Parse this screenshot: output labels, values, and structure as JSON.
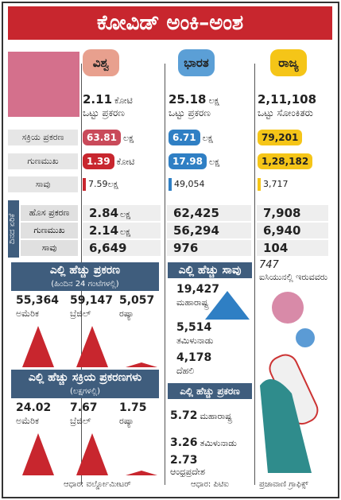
{
  "title": "ಕೋವಿಡ್ ಅಂಕಿ–ಅಂಶ",
  "columns": [
    {
      "header": "ವಿಶ್ವ",
      "total": "2.11",
      "total_unit": "ಕೋಟಿ",
      "total_label": "ಒಟ್ಟು ಪ್ರಕರಣ"
    },
    {
      "header": "ಭಾರತ",
      "total": "25.18",
      "total_unit": "ಲಕ್ಷ",
      "total_label": "ಒಟ್ಟು ಪ್ರಕರಣ"
    },
    {
      "header": "ರಾಜ್ಯ",
      "total": "2,11,108",
      "total_label": "ಒಟ್ಟು ಸೋಂಕಿತರು"
    }
  ],
  "cumulative": [
    {
      "label": "ಸಕ್ರಿಯ ಪ್ರಕರಣ",
      "cells": [
        {
          "value": "63.81",
          "unit": "ಲಕ್ಷ"
        },
        {
          "value": "6.71",
          "unit": "ಲಕ್ಷ"
        },
        {
          "value": "79,201"
        }
      ]
    },
    {
      "label": "ಗುಣಮುಖ",
      "cells": [
        {
          "value": "1.39",
          "unit": "ಕೋಟಿ"
        },
        {
          "value": "17.98",
          "unit": "ಲಕ್ಷ"
        },
        {
          "value": "1,28,182"
        }
      ]
    },
    {
      "label": "ಸಾವು",
      "cells": [
        {
          "value": "7.59",
          "unit": "ಲಕ್ಷ"
        },
        {
          "value": "49,054"
        },
        {
          "value": "3,717"
        }
      ]
    }
  ],
  "daily": {
    "label": "ದಿನದ ಏರಿಕೆ",
    "rows": [
      {
        "label": "ಹೊಸ ಪ್ರಕರಣ",
        "cells": [
          {
            "value": "2.84",
            "unit": "ಲಕ್ಷ"
          },
          {
            "value": "62,425"
          },
          {
            "value": "7,908"
          }
        ]
      },
      {
        "label": "ಗುಣಮುಖ",
        "cells": [
          {
            "value": "2.14",
            "unit": "ಲಕ್ಷ"
          },
          {
            "value": "56,294"
          },
          {
            "value": "6,940"
          }
        ]
      },
      {
        "label": "ಸಾವು",
        "cells": [
          {
            "value": "6,649"
          },
          {
            "value": "976"
          },
          {
            "value": "104"
          }
        ]
      }
    ]
  },
  "world_top_cases": {
    "title": "ಎಲ್ಲಿ ಹೆಚ್ಚು ಪ್ರಕರಣ",
    "subtitle": "(ಹಿಂದಿನ 24 ಗಂಟೆಗಳಲ್ಲಿ)",
    "items": [
      {
        "value": "55,364",
        "place": "ಅಮೆರಿಕ"
      },
      {
        "value": "59,147",
        "place": "ಬ್ರೆಜಿಲ್"
      },
      {
        "value": "5,057",
        "place": "ರಷ್ಯಾ"
      }
    ]
  },
  "world_top_active": {
    "title": "ಎಲ್ಲಿ ಹೆಚ್ಚು ಸಕ್ರಿಯ ಪ್ರಕರಣಗಳು",
    "subtitle": "(ಲಕ್ಷಗಳಲ್ಲಿ)",
    "items": [
      {
        "value": "24.02",
        "place": "ಅಮೆರಿಕ"
      },
      {
        "value": "7.67",
        "place": "ಬ್ರೆಜಿಲ್"
      },
      {
        "value": "1.75",
        "place": "ರಷ್ಯಾ"
      }
    ]
  },
  "world_source": "ಆಧಾರ: ವರ್ಲ್ಡೋಮೀಟರ್",
  "india_top_deaths": {
    "title": "ಎಲ್ಲಿ ಹೆಚ್ಚು ಸಾವು",
    "items": [
      {
        "value": "19,427",
        "place": "ಮಹಾರಾಷ್ಟ್ರ"
      },
      {
        "value": "5,514",
        "place": "ತಮಿಳುನಾಡು"
      },
      {
        "value": "4,178",
        "place": "ದೆಹಲಿ"
      }
    ]
  },
  "india_top_cases": {
    "title": "ಎಲ್ಲಿ ಹೆಚ್ಚು ಪ್ರಕರಣ",
    "items": [
      {
        "value": "5.72",
        "place": "ಮಹಾರಾಷ್ಟ್ರ"
      },
      {
        "value": "3.26",
        "place": "ತಮಿಳುನಾಡು"
      },
      {
        "value": "2.73",
        "place": "ಆಂಧ್ರಪ್ರದೇಶ"
      }
    ]
  },
  "india_source": "ಆಧಾರ: ಪಿಟಿಐ",
  "state_icu": {
    "value": "747",
    "label": "ಐಸಿಯುನಲ್ಲಿ ಇರುವವರು"
  },
  "credit": "ಪ್ರಜಾವಾಣಿ ಗ್ರಾಫಿಕ್ಸ್"
}
